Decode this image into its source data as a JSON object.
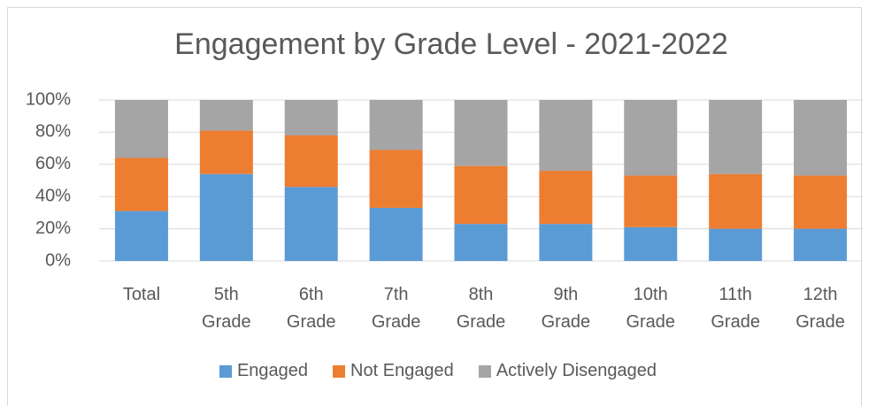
{
  "chart_data": {
    "type": "stacked_bar",
    "title": "Engagement by Grade Level - 2021-2022",
    "categories": [
      "Total",
      "5th Grade",
      "6th Grade",
      "7th Grade",
      "8th Grade",
      "9th Grade",
      "10th Grade",
      "11th Grade",
      "12th Grade"
    ],
    "series": [
      {
        "name": "Engaged",
        "color": "#5b9bd5",
        "values": [
          31,
          54,
          46,
          33,
          23,
          23,
          21,
          20,
          20
        ]
      },
      {
        "name": "Not Engaged",
        "color": "#ed7d31",
        "values": [
          33,
          27,
          32,
          36,
          36,
          33,
          32,
          34,
          33
        ]
      },
      {
        "name": "Actively Disengaged",
        "color": "#a5a5a5",
        "values": [
          36,
          19,
          22,
          31,
          41,
          44,
          47,
          46,
          47
        ]
      }
    ],
    "ylim": [
      0,
      100
    ],
    "yticks": [
      {
        "value": 0,
        "label": "0%"
      },
      {
        "value": 20,
        "label": "20%"
      },
      {
        "value": 40,
        "label": "40%"
      },
      {
        "value": 60,
        "label": "60%"
      },
      {
        "value": 80,
        "label": "80%"
      },
      {
        "value": 100,
        "label": "100%"
      }
    ],
    "grid": true,
    "legend": "bottom"
  }
}
